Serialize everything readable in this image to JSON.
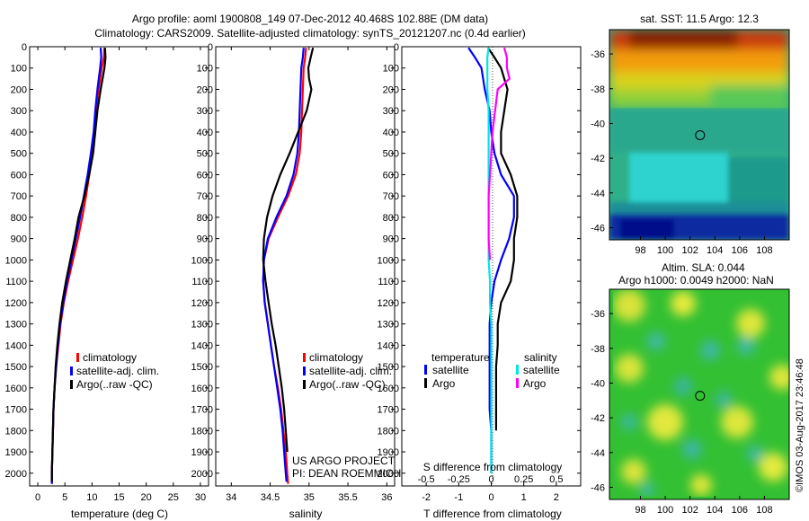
{
  "header": {
    "title": "Argo profile: aoml 1900808_149 07-Dec-2012 40.468S 102.88E (DM data)",
    "subtitle": "Climatology: CARS2009. Satellite-adjusted climatology: synTS_20121207.nc (0.4d earlier)"
  },
  "colors": {
    "climatology": "#ff0000",
    "satellite": "#0000ff",
    "argo": "#000000",
    "sal_satellite": "#00e5e5",
    "sal_argo": "#ff00ff"
  },
  "depth_axis": {
    "ticks": [
      0,
      100,
      200,
      300,
      400,
      500,
      600,
      700,
      800,
      900,
      1000,
      1100,
      1200,
      1300,
      1400,
      1500,
      1600,
      1700,
      1800,
      1900,
      2000
    ],
    "range": [
      0,
      2060
    ]
  },
  "chart_data": [
    {
      "type": "line",
      "id": "temperature",
      "xlabel": "temperature (deg C)",
      "xlim": [
        -1.5,
        31.5
      ],
      "xticks": [
        0,
        5,
        10,
        15,
        20,
        25,
        30
      ],
      "ylim": [
        0,
        2060
      ],
      "legend": [
        "climatology",
        "satellite-adj. clim.",
        "Argo(..raw -QC)"
      ],
      "series": [
        {
          "name": "climatology",
          "x": [
            12.3,
            12.2,
            11.8,
            11.2,
            10.7,
            10.4,
            10.0,
            9.5,
            8.9,
            8.2,
            7.4,
            6.5,
            5.6,
            4.8,
            4.2,
            3.8,
            3.4,
            3.1,
            2.9,
            2.8,
            2.7,
            2.6,
            2.6,
            2.6
          ],
          "y": [
            5,
            50,
            100,
            200,
            300,
            400,
            500,
            600,
            700,
            800,
            900,
            1000,
            1100,
            1200,
            1300,
            1400,
            1500,
            1600,
            1700,
            1800,
            1900,
            2000,
            2040,
            2050
          ]
        },
        {
          "name": "satellite-adj. clim.",
          "x": [
            11.6,
            11.7,
            11.5,
            11.0,
            10.6,
            10.3,
            9.8,
            9.2,
            8.5,
            7.8,
            7.0,
            6.2,
            5.4,
            4.7,
            4.1,
            3.7,
            3.4,
            3.1,
            2.9,
            2.8,
            2.7,
            2.6,
            2.6,
            2.6
          ],
          "y": [
            5,
            50,
            100,
            200,
            300,
            400,
            500,
            600,
            700,
            800,
            900,
            1000,
            1100,
            1200,
            1300,
            1400,
            1500,
            1600,
            1700,
            1800,
            1900,
            2000,
            2040,
            2050
          ]
        },
        {
          "name": "Argo(..raw -QC)",
          "x": [
            12.4,
            12.5,
            12.3,
            11.6,
            11.0,
            10.6,
            10.2,
            9.5,
            8.6,
            7.5,
            6.8,
            6.0,
            5.2,
            4.5,
            4.0,
            3.6,
            3.3,
            3.1,
            2.9,
            2.8,
            2.7,
            2.6,
            2.6
          ],
          "y": [
            5,
            50,
            100,
            200,
            300,
            400,
            500,
            600,
            700,
            800,
            900,
            1000,
            1100,
            1200,
            1300,
            1400,
            1500,
            1600,
            1700,
            1800,
            1900,
            2000,
            2040
          ]
        }
      ]
    },
    {
      "type": "line",
      "id": "salinity",
      "xlabel": "salinity",
      "xlim": [
        33.8,
        36.1
      ],
      "xticks": [
        34,
        34.5,
        35,
        35.5,
        36
      ],
      "xticklabels": [
        "34",
        "34.5",
        "35",
        "35.5",
        "36"
      ],
      "ylim": [
        0,
        2060
      ],
      "legend": [
        "climatology",
        "satellite-adj. clim.",
        "Argo(..raw -QC)"
      ],
      "series": [
        {
          "name": "climatology",
          "x": [
            34.96,
            34.95,
            34.93,
            34.92,
            34.91,
            34.9,
            34.88,
            34.83,
            34.73,
            34.6,
            34.48,
            34.42,
            34.41,
            34.43,
            34.47,
            34.51,
            34.55,
            34.6,
            34.64,
            34.67,
            34.7,
            34.72,
            34.73
          ],
          "y": [
            5,
            50,
            100,
            200,
            300,
            400,
            500,
            600,
            700,
            800,
            900,
            1000,
            1100,
            1200,
            1300,
            1400,
            1500,
            1600,
            1700,
            1800,
            1900,
            2000,
            2050
          ]
        },
        {
          "name": "satellite-adj. clim.",
          "x": [
            34.93,
            34.92,
            34.9,
            34.89,
            34.88,
            34.87,
            34.85,
            34.8,
            34.71,
            34.58,
            34.47,
            34.42,
            34.41,
            34.43,
            34.47,
            34.51,
            34.55,
            34.59,
            34.63,
            34.66,
            34.68,
            34.7,
            34.71
          ],
          "y": [
            5,
            50,
            100,
            200,
            300,
            400,
            500,
            600,
            700,
            800,
            900,
            1000,
            1100,
            1200,
            1300,
            1400,
            1500,
            1600,
            1700,
            1800,
            1900,
            2000,
            2040
          ]
        },
        {
          "name": "Argo(..raw -QC)",
          "x": [
            35.05,
            35.02,
            34.99,
            35.0,
            35.03,
            34.97,
            34.86,
            34.75,
            34.63,
            34.53,
            34.46,
            34.42,
            34.41,
            34.44,
            34.48,
            34.52,
            34.57,
            34.61,
            34.65,
            34.68,
            34.7,
            34.72
          ],
          "y": [
            5,
            50,
            100,
            150,
            200,
            300,
            400,
            500,
            600,
            700,
            800,
            900,
            1000,
            1100,
            1200,
            1300,
            1400,
            1500,
            1600,
            1700,
            1800,
            1900
          ]
        }
      ]
    },
    {
      "type": "line",
      "id": "differences",
      "xlabel": "T difference from climatology",
      "xlabel2": "S difference from climatology",
      "xlim": [
        -2.75,
        2.75
      ],
      "xticks": [
        -2,
        -1,
        0,
        1,
        2
      ],
      "xticklabels": [
        "-2",
        "-1",
        "0",
        "1",
        "2"
      ],
      "sticks": [
        -0.5,
        -0.25,
        0,
        0.25,
        0.5
      ],
      "sticklabels": [
        "-0.5",
        "-0.25",
        "0",
        "0.25",
        "0.5"
      ],
      "ylim": [
        0,
        2060
      ],
      "legend_temperature_title": "temperature",
      "legend_salinity_title": "salinity",
      "legend_items": {
        "t_sat": "satellite",
        "t_argo": "Argo",
        "s_sat": "satellite",
        "s_argo": "Argo"
      },
      "series": [
        {
          "name": "temperature satellite",
          "x": [
            -0.7,
            -0.5,
            -0.3,
            -0.2,
            -0.05,
            0.0,
            0.1,
            0.3,
            0.7,
            0.7,
            0.55,
            0.3,
            0.1,
            0.0,
            -0.05,
            -0.05,
            -0.05,
            -0.05,
            -0.05,
            0,
            0
          ],
          "y": [
            5,
            50,
            100,
            200,
            300,
            400,
            500,
            600,
            700,
            800,
            900,
            1000,
            1100,
            1200,
            1300,
            1400,
            1500,
            1600,
            1700,
            1800,
            2000
          ]
        },
        {
          "name": "temperature Argo",
          "x": [
            -0.1,
            0.1,
            0.3,
            0.5,
            0.4,
            0.3,
            0.3,
            0.6,
            0.8,
            0.8,
            0.7,
            0.7,
            0.6,
            0.3,
            0.2,
            0.2,
            0.15,
            0.15,
            0.15,
            0.15
          ],
          "y": [
            5,
            50,
            100,
            200,
            300,
            400,
            500,
            600,
            700,
            800,
            900,
            1000,
            1100,
            1200,
            1300,
            1400,
            1500,
            1600,
            1700,
            1800
          ]
        },
        {
          "name": "salinity satellite",
          "x": [
            -0.02,
            -0.03,
            -0.03,
            -0.03,
            -0.02,
            -0.02,
            -0.02,
            -0.02,
            -0.02,
            -0.02,
            -0.02,
            -0.02,
            -0.01,
            -0.01,
            0,
            0,
            0,
            0,
            0,
            0,
            0
          ],
          "y": [
            5,
            50,
            100,
            200,
            300,
            400,
            500,
            600,
            700,
            800,
            900,
            1000,
            1100,
            1200,
            1300,
            1400,
            1500,
            1600,
            1700,
            1800,
            2000
          ]
        },
        {
          "name": "salinity Argo",
          "x": [
            0.1,
            0.12,
            0.12,
            0.14,
            0.05,
            0.03,
            0.01,
            0.0,
            -0.01,
            -0.02,
            -0.02,
            -0.02,
            -0.01
          ],
          "y": [
            5,
            50,
            100,
            150,
            200,
            300,
            400,
            500,
            600,
            700,
            800,
            900,
            1000
          ]
        }
      ]
    },
    {
      "type": "heatmap",
      "id": "sst-map",
      "title": "sat. SST: 11.5 Argo: 12.3",
      "xticks": [
        98,
        100,
        102,
        104,
        106,
        108
      ],
      "yticks": [
        -36,
        -38,
        -40,
        -42,
        -44,
        -46
      ],
      "xlim": [
        95.5,
        110
      ],
      "ylim": [
        -46.7,
        -34.6
      ],
      "marker": [
        102.88,
        -40.468
      ]
    },
    {
      "type": "heatmap",
      "id": "sla-map",
      "title": "Altim. SLA: 0.044",
      "subtitle": "Argo h1000: 0.0049 h2000: NaN",
      "xticks": [
        98,
        100,
        102,
        104,
        106,
        108
      ],
      "yticks": [
        -36,
        -38,
        -40,
        -42,
        -44,
        -46
      ],
      "xlim": [
        95.5,
        110
      ],
      "ylim": [
        -46.7,
        -34.6
      ],
      "marker": [
        102.88,
        -40.468
      ]
    }
  ],
  "annotations": {
    "project_line1": "US ARGO PROJECT",
    "project_line2": "PI: DEAN ROEMMICH",
    "credit": "©IMOS 03-Aug-2017 23:46:48"
  }
}
